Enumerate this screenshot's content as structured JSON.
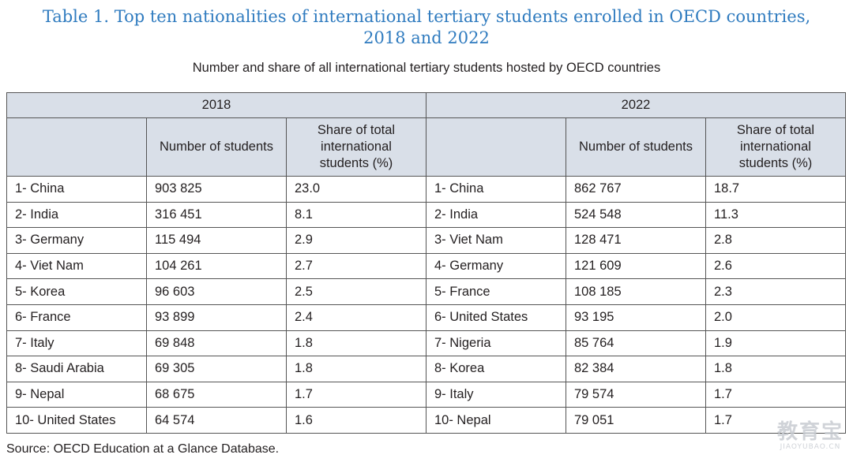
{
  "title_line1": "Table 1. Top ten nationalities of international tertiary students enrolled in OECD countries,",
  "title_line2": "2018 and 2022",
  "subtitle": "Number and share of all international tertiary students hosted by OECD countries",
  "years": [
    "2018",
    "2022"
  ],
  "col_number": "Number of students",
  "col_share": "Share of total international students (%)",
  "rows": [
    {
      "c2018": "1- China",
      "n2018": "903 825",
      "s2018": "23.0",
      "c2022": "1- China",
      "n2022": "862 767",
      "s2022": "18.7"
    },
    {
      "c2018": "2- India",
      "n2018": "316 451",
      "s2018": "8.1",
      "c2022": "2- India",
      "n2022": "524 548",
      "s2022": "11.3"
    },
    {
      "c2018": "3- Germany",
      "n2018": "115 494",
      "s2018": "2.9",
      "c2022": "3- Viet Nam",
      "n2022": "128 471",
      "s2022": "2.8"
    },
    {
      "c2018": "4- Viet Nam",
      "n2018": "104 261",
      "s2018": "2.7",
      "c2022": "4- Germany",
      "n2022": "121 609",
      "s2022": "2.6"
    },
    {
      "c2018": "5- Korea",
      "n2018": "96 603",
      "s2018": "2.5",
      "c2022": "5- France",
      "n2022": "108 185",
      "s2022": "2.3"
    },
    {
      "c2018": "6- France",
      "n2018": "93 899",
      "s2018": "2.4",
      "c2022": "6- United States",
      "n2022": "93 195",
      "s2022": "2.0"
    },
    {
      "c2018": "7- Italy",
      "n2018": "69 848",
      "s2018": "1.8",
      "c2022": "7- Nigeria",
      "n2022": "85 764",
      "s2022": "1.9"
    },
    {
      "c2018": "8- Saudi Arabia",
      "n2018": "69 305",
      "s2018": "1.8",
      "c2022": "8- Korea",
      "n2022": "82 384",
      "s2022": "1.8"
    },
    {
      "c2018": "9- Nepal",
      "n2018": "68 675",
      "s2018": "1.7",
      "c2022": "9- Italy",
      "n2022": "79 574",
      "s2022": "1.7"
    },
    {
      "c2018": "10- United States",
      "n2018": "64 574",
      "s2018": "1.6",
      "c2022": "10- Nepal",
      "n2022": "79 051",
      "s2022": "1.7"
    }
  ],
  "source": "Source: OECD Education at a Glance Database.",
  "watermark": {
    "main": "教育宝",
    "sub": "JIAOYUBAO.CN"
  }
}
